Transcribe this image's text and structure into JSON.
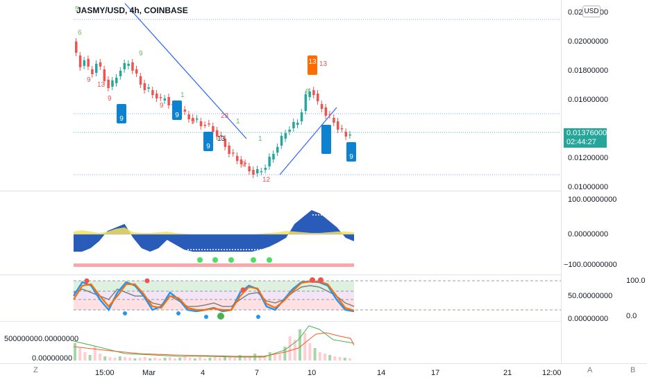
{
  "header": {
    "symbol_title": "JASMY/USD, 4h, COINBASE",
    "currency_button": "USD"
  },
  "price_axis": {
    "labels": [
      "0.02200000",
      "0.02000000",
      "0.01800000",
      "0.01600000",
      "0.01200000",
      "0.01000000"
    ],
    "last_price": "0.01376000",
    "countdown": "02:44:27"
  },
  "oscillator_axis": {
    "labels": [
      "100.00000000",
      "0.00000000",
      "−100.00000000"
    ]
  },
  "stoch_axis": {
    "labels": [
      "100.0",
      "50.00000000",
      "0.00000000",
      "0.0"
    ]
  },
  "volume_axis": {
    "labels": [
      "500000000.00000000",
      "0.00000000"
    ]
  },
  "time_axis": {
    "labels": [
      "15:00",
      "Mar",
      "4",
      "7",
      "10",
      "14",
      "17",
      "21",
      "12:00"
    ],
    "left_button": "Z",
    "right_buttons": [
      "A",
      "B"
    ]
  },
  "annotations": {
    "sequential_counts": [
      "5",
      "6",
      "9",
      "13",
      "9",
      "13",
      "9",
      "9",
      "9",
      "1",
      "23",
      "1",
      "13",
      "8",
      "1",
      "12",
      "9"
    ],
    "badges": [
      "9",
      "9",
      "9",
      "9",
      "13"
    ]
  },
  "colors": {
    "up": "#26a69a",
    "down": "#ef5350",
    "trendline": "#2962ff",
    "osc_fill": "#1e53b5",
    "osc_light": "#f5e15a",
    "stoch_k": "#2196f3",
    "stoch_d": "#ff6d00",
    "rsi": "#808080",
    "badge_blue": "#0d82d0",
    "badge_orange": "#ff6d00"
  }
}
